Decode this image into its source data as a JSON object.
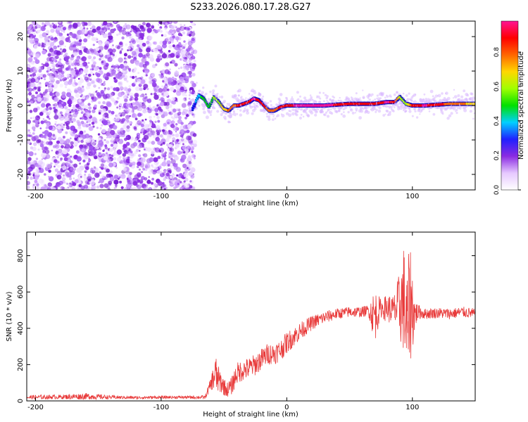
{
  "title": "S233.2026.080.17.28.G27",
  "chart_data": [
    {
      "type": "heatmap",
      "xlabel": "Height of straight line (km)",
      "ylabel": "Frequency (Hz)",
      "xlim": [
        -207,
        150
      ],
      "ylim": [
        -24.5,
        24.5
      ],
      "xticks": [
        -200,
        -100,
        0,
        100
      ],
      "yticks": [
        -20,
        -10,
        0,
        10,
        20
      ],
      "noise_region_x": [
        -207,
        -73
      ],
      "frequency_trace": {
        "x": [
          -75,
          -70,
          -66,
          -62,
          -58,
          -54,
          -50,
          -46,
          -42,
          -38,
          -34,
          -30,
          -26,
          -22,
          -18,
          -14,
          -10,
          -5,
          0,
          10,
          30,
          50,
          70,
          80,
          86,
          90,
          95,
          100,
          110,
          130,
          150
        ],
        "f": [
          -1.0,
          3.0,
          2.0,
          -0.5,
          2.5,
          1.0,
          -1.0,
          -1.5,
          0.0,
          0.0,
          0.5,
          1.0,
          2.0,
          1.5,
          0.0,
          -1.5,
          -1.5,
          -0.5,
          0.0,
          0.0,
          0.0,
          0.5,
          0.5,
          1.0,
          1.0,
          2.5,
          0.5,
          0.0,
          0.0,
          0.5,
          0.5
        ],
        "amplitude": [
          0.3,
          0.4,
          0.5,
          0.45,
          0.55,
          0.6,
          0.7,
          0.75,
          0.8,
          0.85,
          0.85,
          0.9,
          0.95,
          0.9,
          0.85,
          0.8,
          0.8,
          0.85,
          0.9,
          0.95,
          0.95,
          0.9,
          0.85,
          0.95,
          0.9,
          0.6,
          0.55,
          0.85,
          0.95,
          0.8,
          0.7
        ]
      },
      "colorbar": {
        "label": "Normalized spectral amplitude",
        "range": [
          0.0,
          0.98
        ],
        "ticks": [
          0.0,
          0.2,
          0.4,
          0.6,
          0.8
        ],
        "tick_labels": [
          "0.0",
          "0.2",
          "0.4",
          "0.6",
          "0.8"
        ],
        "colors": [
          "#ffffff",
          "#e6c8ff",
          "#8a2be2",
          "#2020ff",
          "#00d0ff",
          "#00e000",
          "#a0ff00",
          "#ffd700",
          "#ff6600",
          "#ff0000",
          "#ff1493"
        ]
      }
    },
    {
      "type": "line",
      "xlabel": "Height of straight line (km)",
      "ylabel": "SNR (10 * v/v)",
      "xlim": [
        -207,
        150
      ],
      "ylim": [
        0,
        930
      ],
      "xticks": [
        -200,
        -100,
        0,
        100
      ],
      "yticks": [
        0,
        200,
        400,
        600,
        800
      ],
      "color": "#e83a3a",
      "series": [
        {
          "name": "SNR",
          "x": [
            -207,
            -180,
            -160,
            -140,
            -120,
            -100,
            -80,
            -65,
            -60,
            -57,
            -55,
            -52,
            -48,
            -44,
            -40,
            -35,
            -30,
            -25,
            -20,
            -15,
            -10,
            -5,
            0,
            10,
            20,
            30,
            40,
            50,
            60,
            65,
            70,
            75,
            80,
            85,
            90,
            93,
            96,
            98,
            100,
            102,
            105,
            110,
            120,
            130,
            140,
            150
          ],
          "y": [
            20,
            22,
            25,
            20,
            18,
            20,
            20,
            20,
            100,
            150,
            120,
            100,
            60,
            80,
            150,
            170,
            180,
            200,
            230,
            260,
            260,
            280,
            320,
            380,
            430,
            460,
            480,
            490,
            490,
            500,
            470,
            510,
            510,
            500,
            520,
            560,
            380,
            560,
            500,
            480,
            490,
            480,
            485,
            480,
            490,
            480
          ],
          "amplitude": [
            12,
            12,
            18,
            10,
            8,
            8,
            8,
            10,
            40,
            120,
            80,
            60,
            40,
            50,
            60,
            60,
            60,
            60,
            60,
            60,
            60,
            60,
            60,
            50,
            40,
            35,
            30,
            30,
            30,
            30,
            150,
            50,
            80,
            80,
            200,
            300,
            330,
            350,
            250,
            80,
            40,
            30,
            30,
            30,
            30,
            30
          ]
        }
      ]
    }
  ]
}
